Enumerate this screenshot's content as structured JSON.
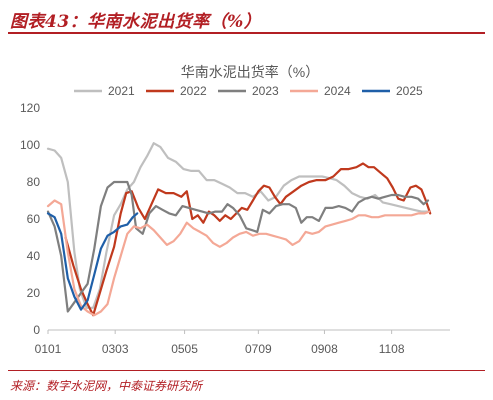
{
  "figure": {
    "title": "图表43：华南水泥出货率（%）",
    "source": "来源：数字水泥网，中泰证券研究所"
  },
  "colors": {
    "accent": "#b21f24",
    "axis": "#bfbfbf",
    "text": "#595959"
  },
  "chart_data": {
    "type": "line",
    "title": "华南水泥出货率（%）",
    "xlabel": "",
    "ylabel": "",
    "x_tick_labels": [
      "0101",
      "0303",
      "0505",
      "0709",
      "0908",
      "1108"
    ],
    "x_range": [
      0,
      365
    ],
    "x_ticks": [
      0,
      61,
      124,
      191,
      251,
      312
    ],
    "ylim": [
      0,
      120
    ],
    "y_ticks": [
      0,
      20,
      40,
      60,
      80,
      100,
      120
    ],
    "grid": false,
    "legend_position": "top",
    "series": [
      {
        "name": "2021",
        "color": "#bfbfbf",
        "points": [
          [
            0,
            98
          ],
          [
            6,
            97
          ],
          [
            12,
            93
          ],
          [
            18,
            80
          ],
          [
            24,
            42
          ],
          [
            29,
            22
          ],
          [
            35,
            12
          ],
          [
            41,
            12
          ],
          [
            47,
            22
          ],
          [
            53,
            42
          ],
          [
            60,
            62
          ],
          [
            66,
            68
          ],
          [
            72,
            76
          ],
          [
            78,
            80
          ],
          [
            84,
            88
          ],
          [
            90,
            94
          ],
          [
            96,
            101
          ],
          [
            102,
            99
          ],
          [
            109,
            93
          ],
          [
            116,
            91
          ],
          [
            123,
            87
          ],
          [
            130,
            86
          ],
          [
            137,
            86
          ],
          [
            144,
            81
          ],
          [
            151,
            81
          ],
          [
            158,
            79
          ],
          [
            165,
            77
          ],
          [
            172,
            74
          ],
          [
            179,
            74
          ],
          [
            186,
            72
          ],
          [
            193,
            75
          ],
          [
            200,
            70
          ],
          [
            207,
            72
          ],
          [
            214,
            78
          ],
          [
            221,
            81
          ],
          [
            228,
            83
          ],
          [
            235,
            83
          ],
          [
            242,
            83
          ],
          [
            249,
            83
          ],
          [
            256,
            82
          ],
          [
            262,
            81
          ],
          [
            269,
            78
          ],
          [
            276,
            74
          ],
          [
            283,
            72
          ],
          [
            290,
            71
          ],
          [
            297,
            73
          ],
          [
            304,
            69
          ],
          [
            311,
            68
          ],
          [
            318,
            67
          ],
          [
            325,
            66
          ],
          [
            332,
            65
          ],
          [
            339,
            64
          ],
          [
            345,
            64
          ]
        ]
      },
      {
        "name": "2022",
        "color": "#c0391d",
        "points": [
          [
            16,
            50
          ],
          [
            23,
            35
          ],
          [
            30,
            22
          ],
          [
            36,
            14
          ],
          [
            41,
            8
          ],
          [
            47,
            20
          ],
          [
            53,
            32
          ],
          [
            60,
            45
          ],
          [
            66,
            63
          ],
          [
            71,
            74
          ],
          [
            76,
            75
          ],
          [
            82,
            66
          ],
          [
            88,
            60
          ],
          [
            94,
            68
          ],
          [
            100,
            76
          ],
          [
            107,
            74
          ],
          [
            114,
            74
          ],
          [
            121,
            72
          ],
          [
            126,
            75
          ],
          [
            131,
            60
          ],
          [
            136,
            62
          ],
          [
            141,
            58
          ],
          [
            146,
            64
          ],
          [
            151,
            62
          ],
          [
            156,
            59
          ],
          [
            161,
            62
          ],
          [
            166,
            60
          ],
          [
            171,
            63
          ],
          [
            176,
            66
          ],
          [
            181,
            65
          ],
          [
            186,
            70
          ],
          [
            191,
            75
          ],
          [
            196,
            78
          ],
          [
            201,
            77
          ],
          [
            206,
            72
          ],
          [
            211,
            68
          ],
          [
            216,
            72
          ],
          [
            223,
            75
          ],
          [
            230,
            78
          ],
          [
            237,
            80
          ],
          [
            244,
            81
          ],
          [
            252,
            81
          ],
          [
            259,
            83
          ],
          [
            266,
            87
          ],
          [
            273,
            87
          ],
          [
            280,
            88
          ],
          [
            286,
            90
          ],
          [
            291,
            88
          ],
          [
            296,
            88
          ],
          [
            302,
            85
          ],
          [
            308,
            82
          ],
          [
            313,
            77
          ],
          [
            318,
            71
          ],
          [
            323,
            70
          ],
          [
            329,
            77
          ],
          [
            334,
            78
          ],
          [
            339,
            76
          ],
          [
            343,
            70
          ],
          [
            347,
            63
          ]
        ]
      },
      {
        "name": "2023",
        "color": "#7f7f7f",
        "points": [
          [
            0,
            64
          ],
          [
            6,
            56
          ],
          [
            12,
            40
          ],
          [
            18,
            10
          ],
          [
            24,
            15
          ],
          [
            30,
            20
          ],
          [
            36,
            25
          ],
          [
            42,
            44
          ],
          [
            48,
            67
          ],
          [
            54,
            77
          ],
          [
            60,
            80
          ],
          [
            66,
            80
          ],
          [
            72,
            80
          ],
          [
            76,
            73
          ],
          [
            80,
            55
          ],
          [
            86,
            52
          ],
          [
            92,
            63
          ],
          [
            98,
            67
          ],
          [
            104,
            65
          ],
          [
            110,
            63
          ],
          [
            116,
            62
          ],
          [
            122,
            67
          ],
          [
            128,
            66
          ],
          [
            134,
            65
          ],
          [
            140,
            64
          ],
          [
            146,
            63
          ],
          [
            152,
            64
          ],
          [
            158,
            64
          ],
          [
            163,
            68
          ],
          [
            168,
            66
          ],
          [
            174,
            62
          ],
          [
            180,
            55
          ],
          [
            185,
            54
          ],
          [
            190,
            53
          ],
          [
            195,
            65
          ],
          [
            201,
            63
          ],
          [
            207,
            67
          ],
          [
            213,
            68
          ],
          [
            219,
            68
          ],
          [
            225,
            66
          ],
          [
            230,
            58
          ],
          [
            235,
            61
          ],
          [
            240,
            61
          ],
          [
            246,
            59
          ],
          [
            252,
            66
          ],
          [
            258,
            66
          ],
          [
            264,
            67
          ],
          [
            270,
            66
          ],
          [
            276,
            64
          ],
          [
            282,
            69
          ],
          [
            288,
            71
          ],
          [
            294,
            72
          ],
          [
            300,
            71
          ],
          [
            306,
            72
          ],
          [
            312,
            73
          ],
          [
            318,
            73
          ],
          [
            324,
            72
          ],
          [
            330,
            72
          ],
          [
            336,
            71
          ],
          [
            341,
            68
          ],
          [
            345,
            70
          ]
        ]
      },
      {
        "name": "2024",
        "color": "#f4a896",
        "points": [
          [
            0,
            67
          ],
          [
            6,
            70
          ],
          [
            12,
            68
          ],
          [
            18,
            42
          ],
          [
            24,
            22
          ],
          [
            30,
            13
          ],
          [
            36,
            10
          ],
          [
            42,
            8
          ],
          [
            48,
            10
          ],
          [
            54,
            14
          ],
          [
            60,
            28
          ],
          [
            66,
            40
          ],
          [
            72,
            52
          ],
          [
            78,
            56
          ],
          [
            84,
            55
          ],
          [
            90,
            57
          ],
          [
            96,
            54
          ],
          [
            102,
            50
          ],
          [
            108,
            46
          ],
          [
            114,
            48
          ],
          [
            120,
            52
          ],
          [
            126,
            58
          ],
          [
            132,
            55
          ],
          [
            138,
            53
          ],
          [
            144,
            51
          ],
          [
            150,
            47
          ],
          [
            156,
            45
          ],
          [
            162,
            47
          ],
          [
            168,
            50
          ],
          [
            174,
            52
          ],
          [
            180,
            53
          ],
          [
            186,
            51
          ],
          [
            192,
            52
          ],
          [
            198,
            52
          ],
          [
            204,
            51
          ],
          [
            210,
            50
          ],
          [
            216,
            49
          ],
          [
            222,
            46
          ],
          [
            228,
            48
          ],
          [
            234,
            53
          ],
          [
            240,
            52
          ],
          [
            246,
            53
          ],
          [
            252,
            56
          ],
          [
            258,
            57
          ],
          [
            264,
            58
          ],
          [
            270,
            59
          ],
          [
            276,
            60
          ],
          [
            282,
            62
          ],
          [
            288,
            62
          ],
          [
            294,
            61
          ],
          [
            300,
            61
          ],
          [
            306,
            62
          ],
          [
            312,
            62
          ],
          [
            318,
            62
          ],
          [
            324,
            62
          ],
          [
            330,
            62
          ],
          [
            336,
            63
          ],
          [
            342,
            63
          ],
          [
            346,
            64
          ]
        ]
      },
      {
        "name": "2025",
        "color": "#1f5fa8",
        "points": [
          [
            0,
            63
          ],
          [
            6,
            61
          ],
          [
            12,
            52
          ],
          [
            18,
            28
          ],
          [
            24,
            18
          ],
          [
            30,
            11
          ],
          [
            36,
            16
          ],
          [
            42,
            30
          ],
          [
            48,
            44
          ],
          [
            54,
            51
          ],
          [
            60,
            53
          ],
          [
            66,
            56
          ],
          [
            72,
            57
          ],
          [
            77,
            61
          ],
          [
            81,
            63
          ]
        ]
      }
    ]
  }
}
